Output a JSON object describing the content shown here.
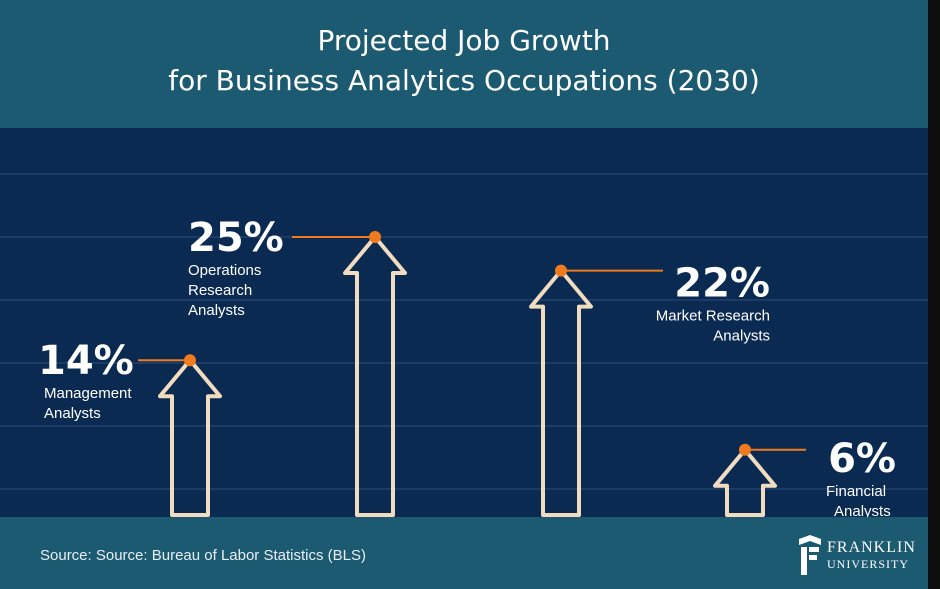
{
  "title": {
    "line1": "Projected Job Growth",
    "line2": "for Business Analytics Occupations (2030)"
  },
  "source": "Source: Source: Bureau of Labor Statistics (BLS)",
  "logo": {
    "word1": "FRANKLIN",
    "word2": "UNIVERSITY"
  },
  "colors": {
    "title_band": "#1c5a72",
    "plot_background": "#0b2a52",
    "arrow_outline": "#f1dcbf",
    "marker": "#f07a1e",
    "text": "#ffffff"
  },
  "chart_data": {
    "type": "bar",
    "bar_shape": "arrow",
    "value_unit": "%",
    "categories": [
      [
        "Management",
        "Analysts"
      ],
      [
        "Operations",
        "Research",
        "Analysts"
      ],
      [
        "Market Research",
        "Analysts"
      ],
      [
        "Financial",
        "Analysts"
      ]
    ],
    "values": [
      14,
      25,
      22,
      6
    ],
    "value_labels": [
      "14%",
      "25%",
      "22%",
      "6%"
    ],
    "ylim": [
      0,
      25
    ],
    "grid": true
  }
}
